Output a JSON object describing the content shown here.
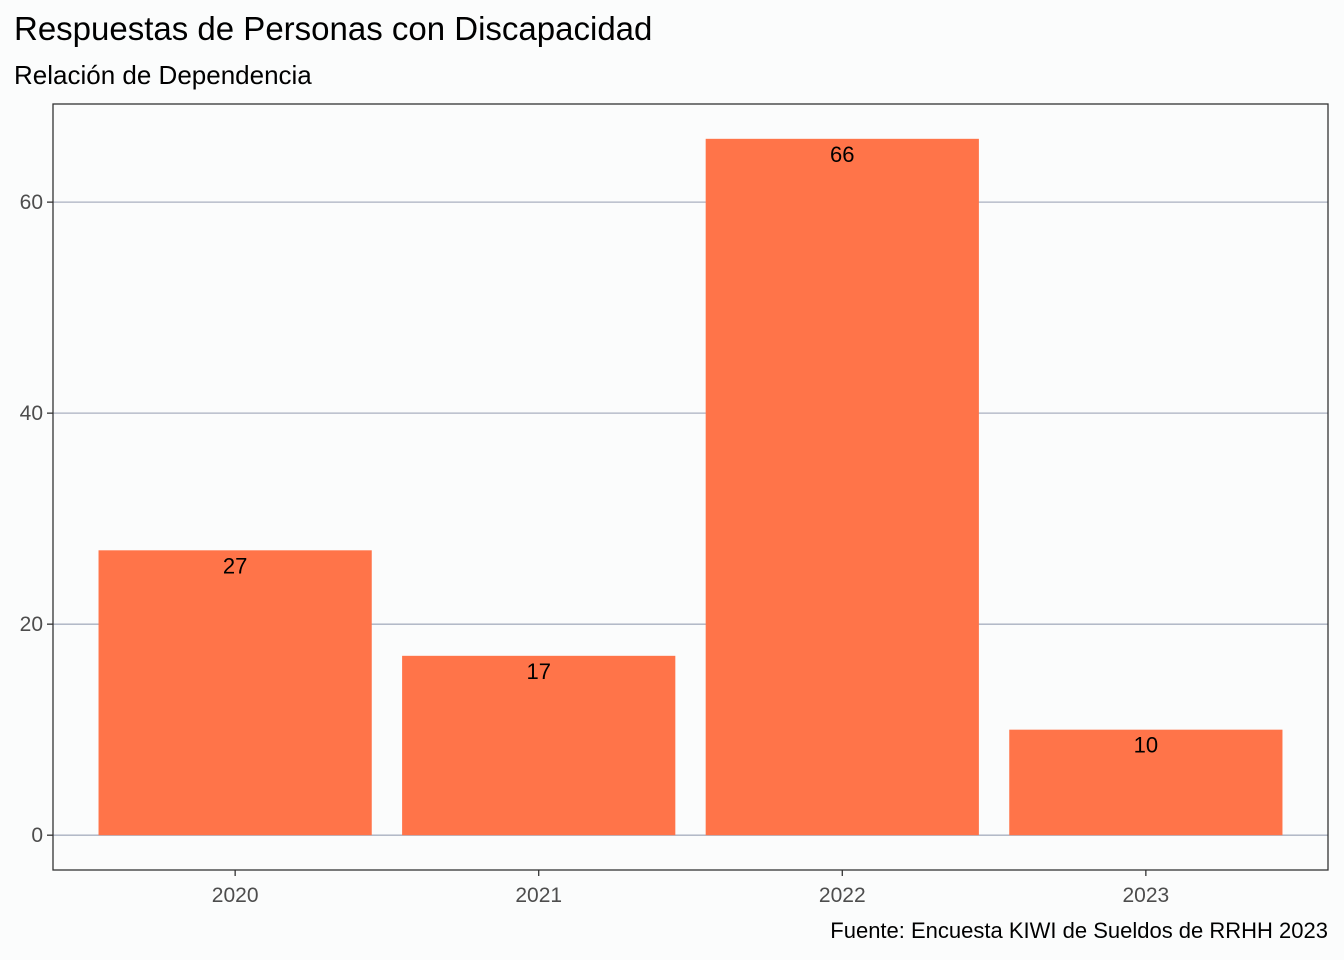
{
  "chart_data": {
    "type": "bar",
    "title": "Respuestas de Personas con Discapacidad",
    "subtitle": "Relación de Dependencia",
    "caption": "Fuente: Encuesta KIWI de Sueldos de RRHH 2023",
    "categories": [
      "2020",
      "2021",
      "2022",
      "2023"
    ],
    "values": [
      27,
      17,
      66,
      10
    ],
    "data_labels": [
      "27",
      "17",
      "66",
      "10"
    ],
    "yticks": [
      "0",
      "20",
      "40",
      "60"
    ],
    "ylim": [
      -3.3,
      69.3
    ],
    "xlabel": "",
    "ylabel": "",
    "grid": "horizontal",
    "colors": {
      "bar": "#FF7449",
      "grid": "#A9B0C0",
      "background": "#FBFCFC"
    }
  }
}
